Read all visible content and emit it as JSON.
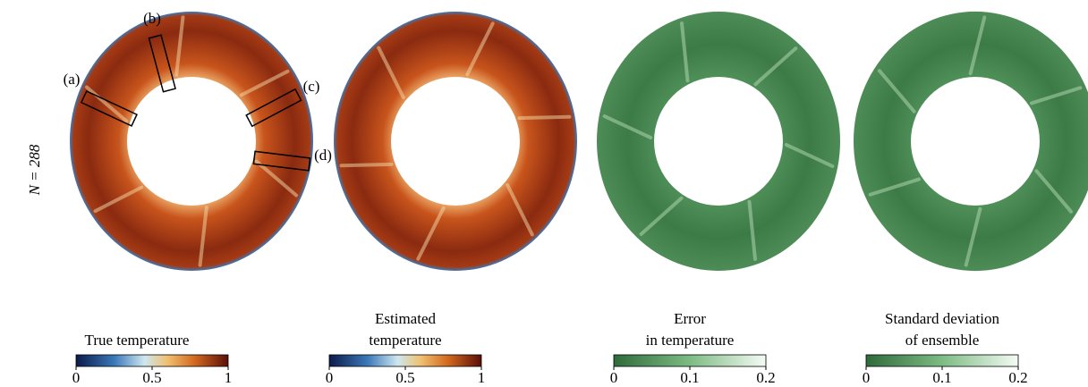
{
  "row_label": "N = 288",
  "annotations": [
    "(a)",
    "(b)",
    "(c)",
    "(d)"
  ],
  "panels": [
    {
      "title": [
        "True temperature"
      ],
      "colormap": "temperature",
      "colorbar": {
        "lim": [
          0,
          1
        ],
        "ticks": [
          0,
          0.5,
          1
        ]
      }
    },
    {
      "title": [
        "Estimated",
        "temperature"
      ],
      "colormap": "temperature",
      "colorbar": {
        "lim": [
          0,
          1
        ],
        "ticks": [
          0,
          0.5,
          1
        ]
      }
    },
    {
      "title": [
        "Error",
        "in temperature"
      ],
      "colormap": "green",
      "colorbar": {
        "lim": [
          0,
          0.2
        ],
        "ticks": [
          0,
          0.1,
          0.2
        ]
      }
    },
    {
      "title": [
        "Standard deviation",
        "of ensemble"
      ],
      "colormap": "green",
      "colorbar": {
        "lim": [
          0,
          0.2
        ],
        "ticks": [
          0,
          0.1,
          0.2
        ]
      }
    }
  ]
}
